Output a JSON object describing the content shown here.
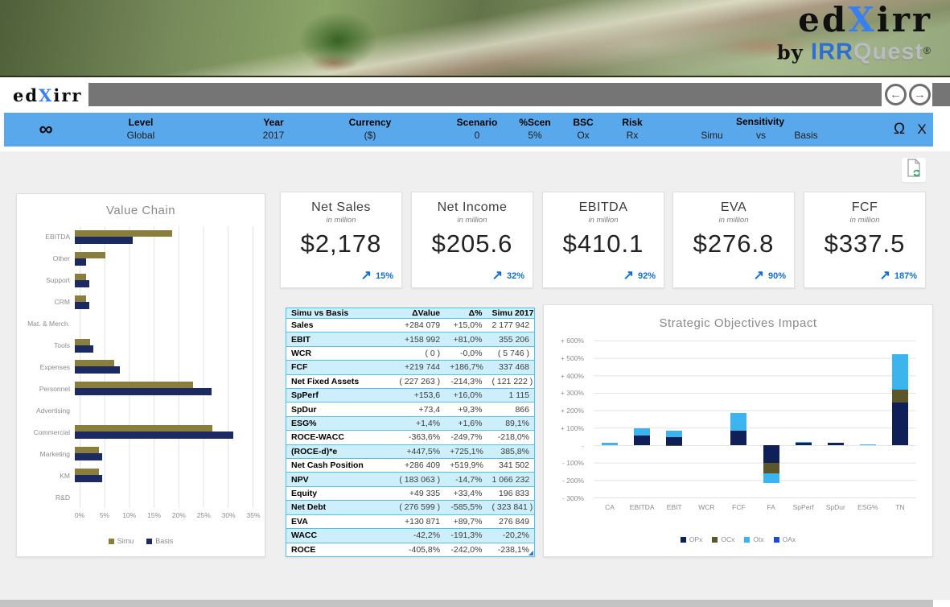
{
  "banner": {
    "logo_pre": "ed",
    "logo_x": "X",
    "logo_post": "irr",
    "by": "by ",
    "brand_irr": "IRR",
    "brand_quest": "Quest",
    "reg": "®"
  },
  "navbar": {
    "logo_pre": "ed",
    "logo_x": "X",
    "logo_post": "irr",
    "back_icon": "←",
    "forward_icon": "→"
  },
  "ribbon": {
    "infinity": "∞",
    "fields": [
      {
        "label": "Level",
        "value": "Global"
      },
      {
        "label": "Year",
        "value": "2017"
      },
      {
        "label": "Currency",
        "value": "($)"
      },
      {
        "label": "Scenario",
        "value": "0"
      },
      {
        "label": "%Scen",
        "value": "5%"
      },
      {
        "label": "BSC",
        "value": "Ox"
      },
      {
        "label": "Risk",
        "value": "Rx"
      }
    ],
    "sensitivity": {
      "label": "Sensitivity",
      "left": "Simu",
      "mid": "vs",
      "right": "Basis"
    },
    "omega": "Ω",
    "close": "X"
  },
  "kpis": [
    {
      "title": "Net Sales",
      "subtitle": "in million",
      "value": "$2,178",
      "arrow": "↗",
      "delta": "15%"
    },
    {
      "title": "Net Income",
      "subtitle": "in million",
      "value": "$205.6",
      "arrow": "↗",
      "delta": "32%"
    },
    {
      "title": "EBITDA",
      "subtitle": "in million",
      "value": "$410.1",
      "arrow": "↗",
      "delta": "92%"
    },
    {
      "title": "EVA",
      "subtitle": "in million",
      "value": "$276.8",
      "arrow": "↗",
      "delta": "90%"
    },
    {
      "title": "FCF",
      "subtitle": "in million",
      "value": "$337.5",
      "arrow": "↗",
      "delta": "187%"
    }
  ],
  "table": {
    "headers": [
      "Simu vs Basis",
      "ΔValue",
      "Δ%",
      "Simu 2017"
    ],
    "rows": [
      [
        "Sales",
        "+284 079",
        "+15,0%",
        "2 177 942"
      ],
      [
        "EBIT",
        "+158 992",
        "+81,0%",
        "355 206"
      ],
      [
        "WCR",
        "( 0 )",
        "-0,0%",
        "( 5 746 )"
      ],
      [
        "FCF",
        "+219 744",
        "+186,7%",
        "337 468"
      ],
      [
        "Net Fixed Assets",
        "( 227 263 )",
        "-214,3%",
        "( 121 222 )"
      ],
      [
        "SpPerf",
        "+153,6",
        "+16,0%",
        "1 115"
      ],
      [
        "SpDur",
        "+73,4",
        "+9,3%",
        "866"
      ],
      [
        "ESG%",
        "+1,4%",
        "+1,6%",
        "89,1%"
      ],
      [
        "ROCE-WACC",
        "-363,6%",
        "-249,7%",
        "-218,0%"
      ],
      [
        "(ROCE-d)*e",
        "+447,5%",
        "+725,1%",
        "385,8%"
      ],
      [
        "Net Cash Position",
        "+286 409",
        "+519,9%",
        "341 502"
      ],
      [
        "NPV",
        "( 183 063 )",
        "-14,7%",
        "1 066 232"
      ],
      [
        "Equity",
        "+49 335",
        "+33,4%",
        "196 833"
      ],
      [
        "Net Debt",
        "( 276 599 )",
        "-585,5%",
        "( 323 841 )"
      ],
      [
        "EVA",
        "+130 871",
        "+89,7%",
        "276 849"
      ],
      [
        "WACC",
        "-42,2%",
        "-191,3%",
        "-20,2%"
      ],
      [
        "ROCE",
        "-405,8%",
        "-242,0%",
        "-238,1%"
      ]
    ]
  },
  "chart_data": [
    {
      "type": "bar",
      "orientation": "horizontal",
      "title": "Value Chain",
      "categories": [
        "EBITDA",
        "Other",
        "Support",
        "CRM",
        "Mat. & Merch.",
        "Tools",
        "Expenses",
        "Personnel",
        "Advertising",
        "Commercial",
        "Marketing",
        "KM",
        "R&D"
      ],
      "series": [
        {
          "name": "Simu",
          "color": "#8a7e3d",
          "values": [
            19.0,
            6.0,
            2.2,
            2.2,
            0,
            3.0,
            7.8,
            23.2,
            0,
            27.0,
            4.8,
            4.8,
            0
          ]
        },
        {
          "name": "Basis",
          "color": "#1c2a63",
          "values": [
            11.3,
            2.2,
            2.8,
            2.8,
            0,
            3.7,
            8.8,
            26.8,
            0,
            31.0,
            5.4,
            5.4,
            0
          ]
        }
      ],
      "xlim": [
        0,
        35
      ],
      "xticks": [
        "0%",
        "5%",
        "10%",
        "15%",
        "20%",
        "25%",
        "30%",
        "35%"
      ],
      "grid": true,
      "legend_position": "bottom"
    },
    {
      "type": "stacked-bar",
      "title": "Strategic Objectives Impact",
      "categories": [
        "CA",
        "EBITDA",
        "EBIT",
        "WCR",
        "FCF",
        "FA",
        "SpPerf",
        "SpDur",
        "ESG%",
        "TN"
      ],
      "series": [
        {
          "name": "OPx",
          "color": "#0f2058",
          "values": [
            0,
            55,
            45,
            0,
            82,
            -100,
            12,
            12,
            0,
            245
          ]
        },
        {
          "name": "OCx",
          "color": "#5c562b",
          "values": [
            0,
            0,
            -5,
            0,
            0,
            -62,
            0,
            0,
            0,
            75
          ]
        },
        {
          "name": "Otx",
          "color": "#3cb4f0",
          "values": [
            15,
            40,
            40,
            0,
            103,
            -55,
            8,
            0,
            6,
            200
          ]
        },
        {
          "name": "OAx",
          "color": "#1d49e0",
          "values": [
            0,
            0,
            0,
            0,
            0,
            0,
            0,
            0,
            0,
            0
          ]
        }
      ],
      "ylim": [
        -300,
        600
      ],
      "yticks": [
        "+ 600%",
        "+ 500%",
        "+ 400%",
        "+ 300%",
        "+ 200%",
        "+ 100%",
        "-",
        "- 100%",
        "- 200%",
        "- 300%"
      ],
      "grid": true,
      "legend_position": "bottom"
    }
  ],
  "colors": {
    "ribbon_blue": "#5aa8ec",
    "kpi_accent": "#0d6fd6",
    "simu_olive": "#8a7e3d",
    "basis_navy": "#1c2a63",
    "table_row_blue": "#cdeffb",
    "table_border": "#53c1f0"
  }
}
